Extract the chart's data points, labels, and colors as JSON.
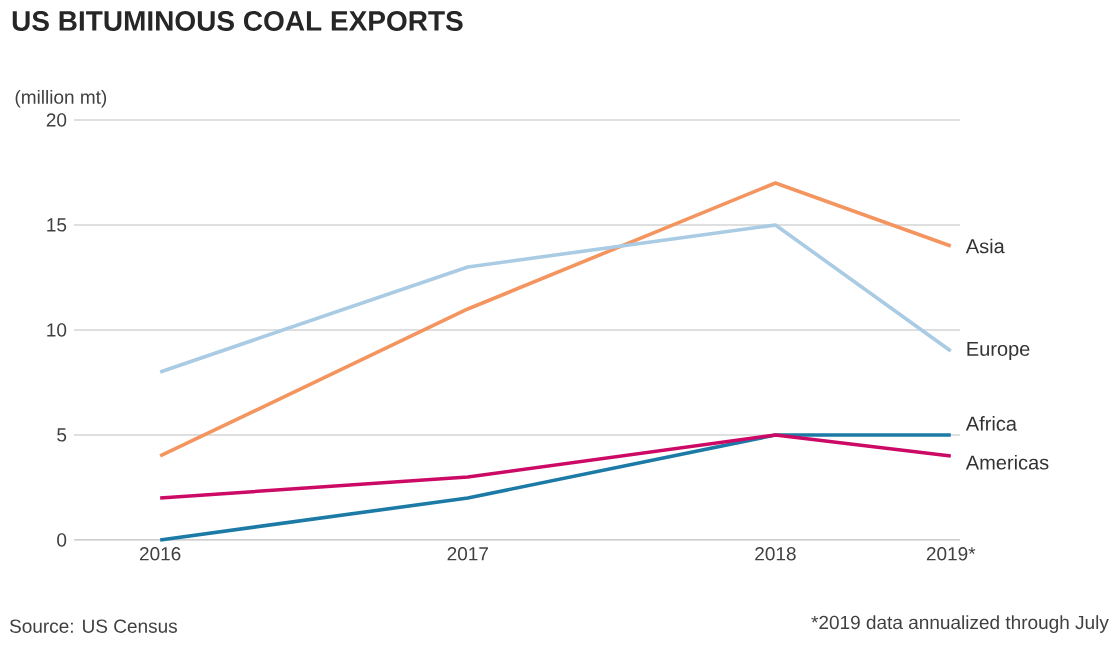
{
  "chart_data": {
    "type": "line",
    "title": "US BITUMINOUS COAL EXPORTS",
    "ylabel": "(million mt)",
    "x": [
      2016,
      2017,
      2018,
      2018.57
    ],
    "xlim": [
      2015.72,
      2018.6
    ],
    "xticks": [
      2016,
      2017,
      2018,
      {
        "value": 2018.57,
        "label": "2019*"
      }
    ],
    "ylim": [
      0,
      20
    ],
    "yticks": [
      0,
      5,
      10,
      15,
      20
    ],
    "grid": "y",
    "series": [
      {
        "name": "Asia",
        "color": "#f4955f",
        "values": [
          4,
          11,
          17,
          14
        ]
      },
      {
        "name": "Europe",
        "color": "#a9cbe3",
        "values": [
          8,
          13,
          15,
          9
        ]
      },
      {
        "name": "Africa",
        "color": "#1b7aa6",
        "values": [
          0,
          2,
          5,
          5
        ]
      },
      {
        "name": "Americas",
        "color": "#cc0a66",
        "values": [
          2,
          3,
          5,
          4
        ]
      }
    ],
    "annotations": [
      "Source: US Census",
      "*2019 data annualized through July"
    ]
  }
}
